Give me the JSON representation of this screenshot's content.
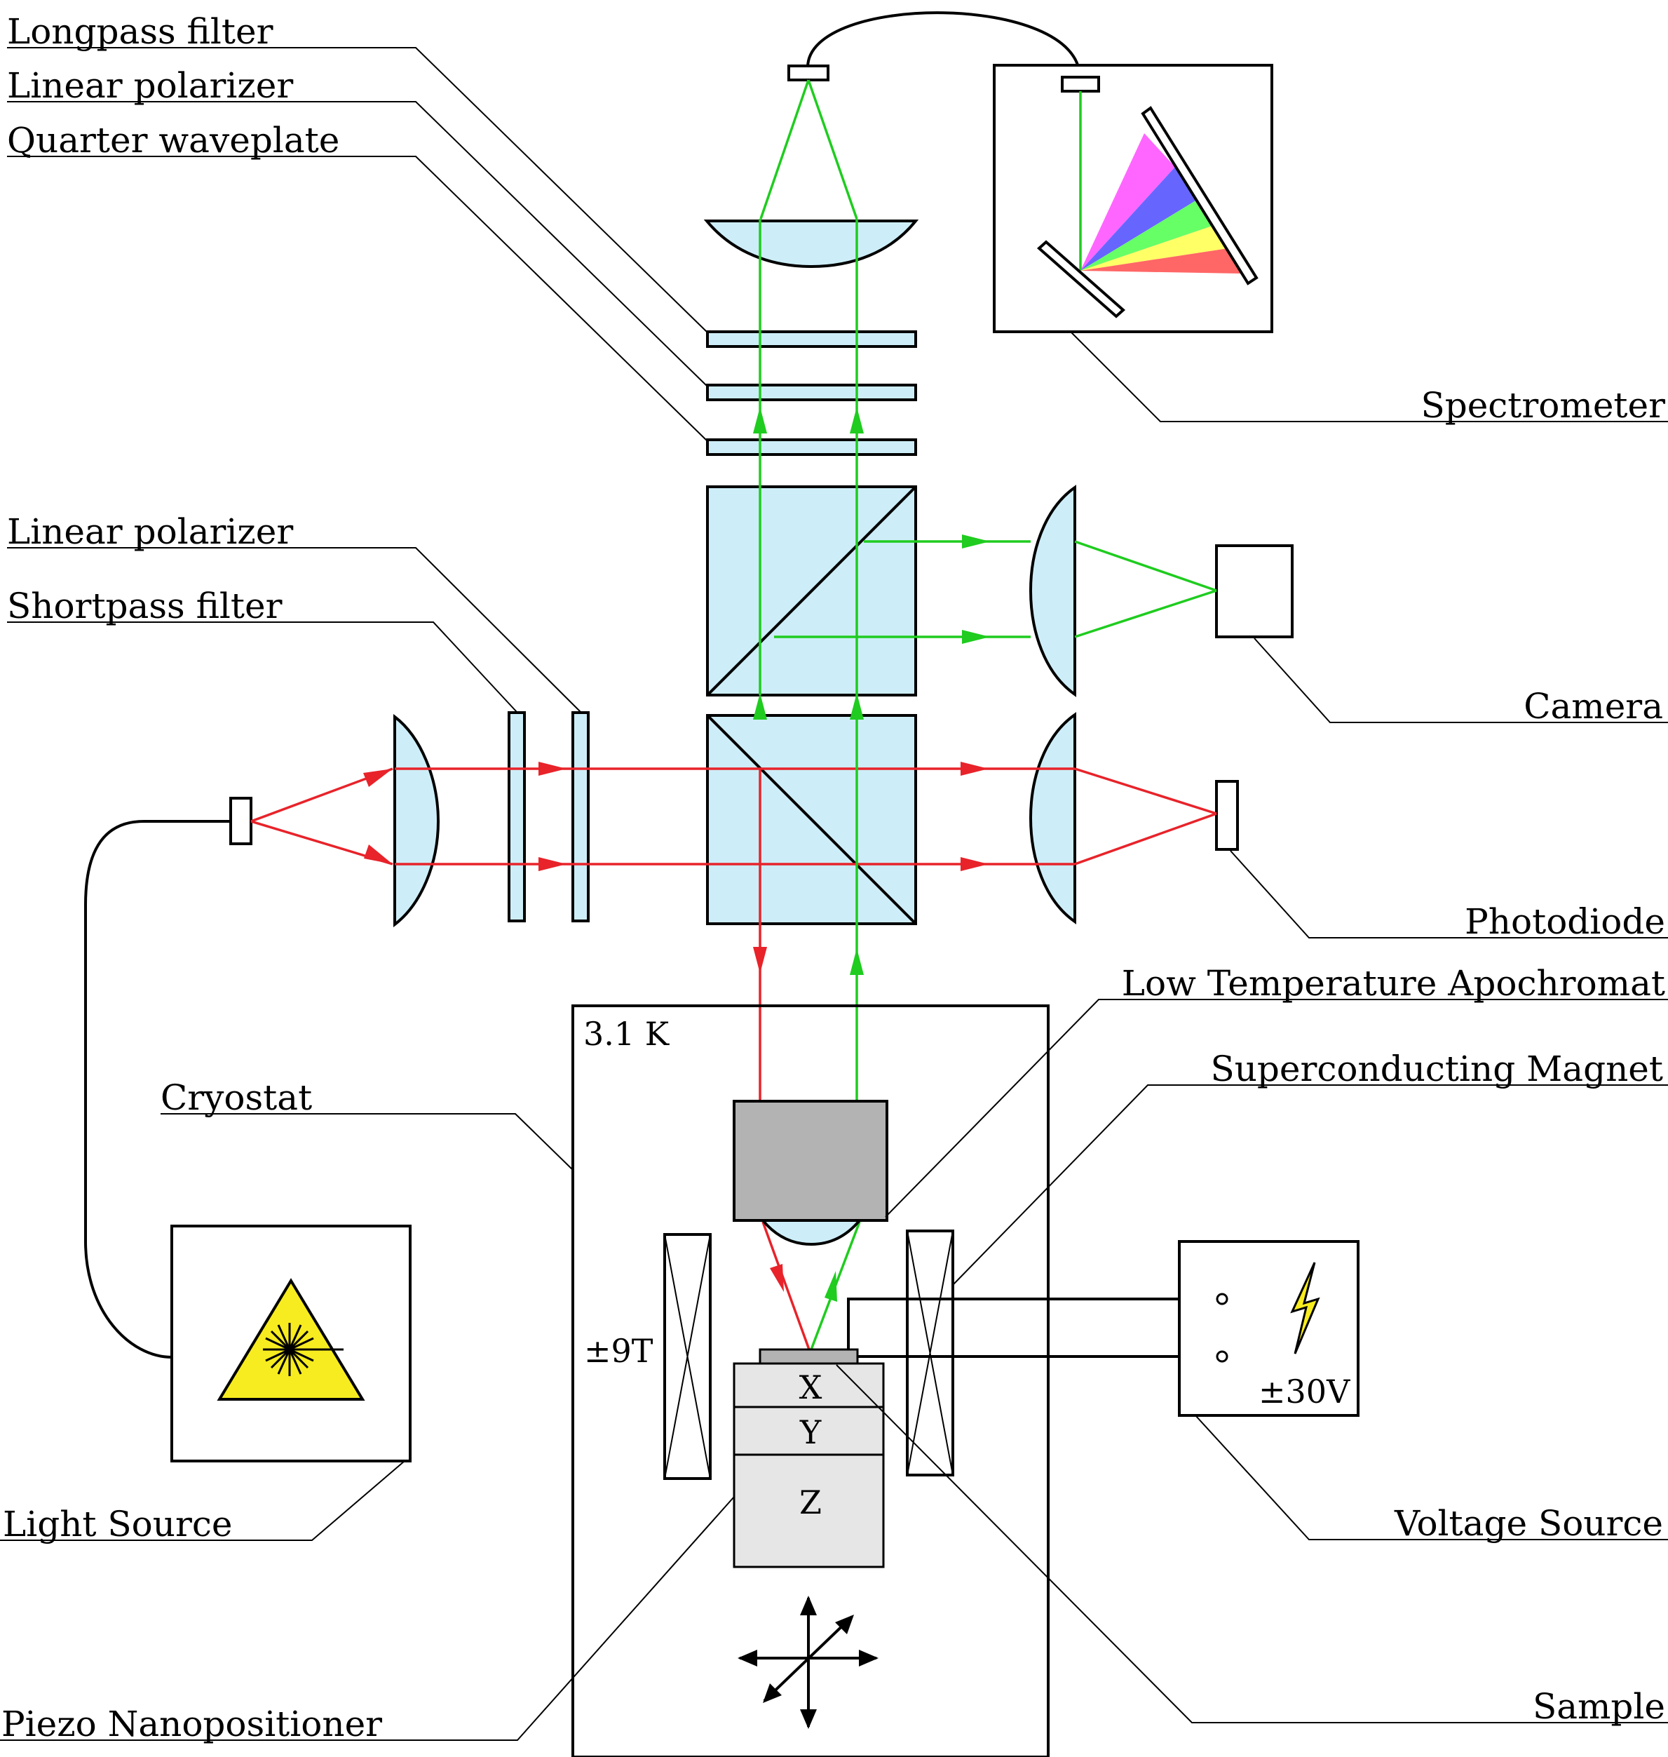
{
  "labels": {
    "longpass_filter": "Longpass filter",
    "linear_polarizer_top": "Linear polarizer",
    "quarter_waveplate": "Quarter waveplate",
    "linear_polarizer_left": "Linear polarizer",
    "shortpass_filter": "Shortpass filter",
    "cryostat": "Cryostat",
    "light_source": "Light Source",
    "piezo_nanopositioner": "Piezo Nanopositioner",
    "spectrometer": "Spectrometer",
    "camera": "Camera",
    "photodiode": "Photodiode",
    "low_temperature_apochromat": "Low Temperature Apochromat",
    "superconducting_magnet": "Superconducting Magnet",
    "voltage_source": "Voltage Source",
    "sample": "Sample"
  },
  "inner_text": {
    "temperature": "3.1 K",
    "magnet_field": "±9T",
    "voltage": "±30V",
    "axis_x": "X",
    "axis_y": "Y",
    "axis_z": "Z"
  },
  "colors": {
    "excitation_beam": "#e8232a",
    "emission_beam": "#1fcc1f",
    "optics_fill": "#cdeef8",
    "objective_fill": "#b3b3b3",
    "positioner_fill": "#e6e6e6",
    "warning_yellow": "#f7ec1f"
  },
  "icons": {
    "light_source": "laser-warning-triangle-icon",
    "voltage_source": "lightning-bolt-icon",
    "stage_axes": "xyz-axes-arrows-icon"
  }
}
